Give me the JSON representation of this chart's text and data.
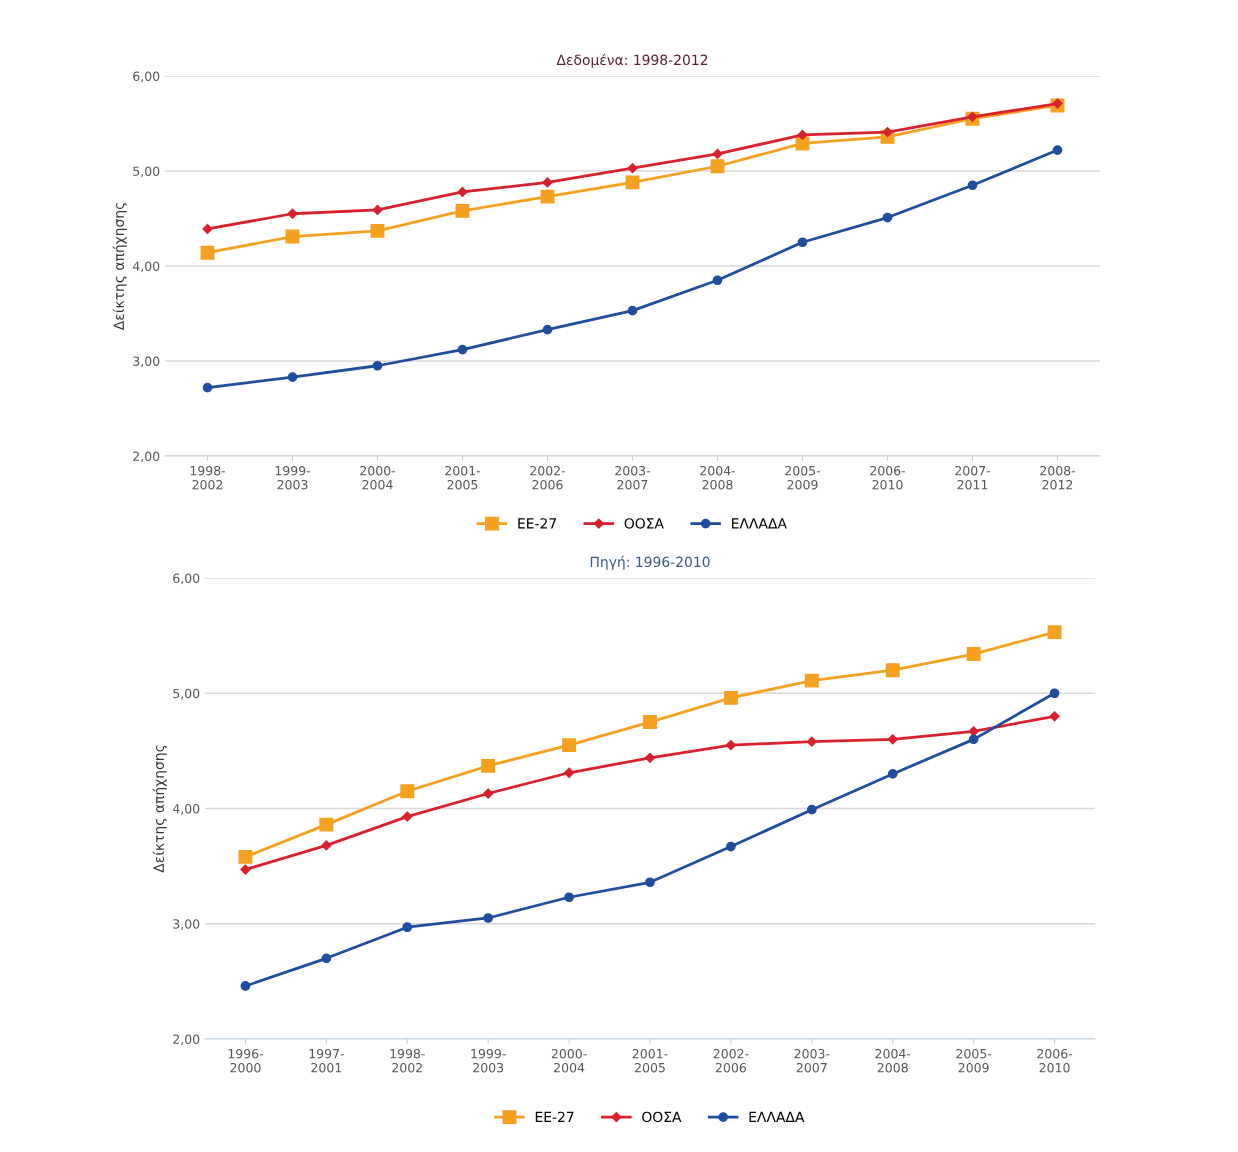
{
  "chart_data": [
    {
      "type": "line",
      "title": "Δεδομένα: 1998-2012",
      "ylabel": "Δείκτης απήχησης",
      "categories": [
        "1998-\n2002",
        "1999-\n2003",
        "2000-\n2004",
        "2001-\n2005",
        "2002-\n2006",
        "2003-\n2007",
        "2004-\n2008",
        "2005-\n2009",
        "2006-\n2010",
        "2007-\n2011",
        "2008-\n2012"
      ],
      "series": [
        {
          "name": "ΕΕ-27",
          "color": "#f5a020",
          "marker": "square",
          "values": [
            4.14,
            4.31,
            4.37,
            4.58,
            4.73,
            4.88,
            5.05,
            5.29,
            5.36,
            5.55,
            5.69
          ]
        },
        {
          "name": "ΟΟΣΑ",
          "color": "#d9212e",
          "marker": "diamond",
          "values": [
            4.39,
            4.55,
            4.59,
            4.78,
            4.88,
            5.03,
            5.18,
            5.38,
            5.41,
            5.57,
            5.71
          ]
        },
        {
          "name": "ΕΛΛΑΔΑ",
          "color": "#1f4e9c",
          "marker": "circle",
          "values": [
            2.72,
            2.83,
            2.95,
            3.12,
            3.33,
            3.53,
            3.85,
            4.25,
            4.51,
            4.85,
            5.22
          ]
        }
      ],
      "ylim": [
        2,
        6
      ],
      "yticks": [
        {
          "value": 2,
          "label": "2,00"
        },
        {
          "value": 3,
          "label": "3,00"
        },
        {
          "value": 4,
          "label": "4,00"
        },
        {
          "value": 5,
          "label": "5,00"
        },
        {
          "value": 6,
          "label": "6,00"
        }
      ],
      "grid": "y",
      "legend": "bottom"
    },
    {
      "type": "line",
      "title": "Πηγή: 1996-2010",
      "ylabel": "Δείκτης απήχησης",
      "categories": [
        "1996-\n2000",
        "1997-\n2001",
        "1998-\n2002",
        "1999-\n2003",
        "2000-\n2004",
        "2001-\n2005",
        "2002-\n2006",
        "2003-\n2007",
        "2004-\n2008",
        "2005-\n2009",
        "2006-\n2010"
      ],
      "series": [
        {
          "name": "ΕΕ-27",
          "color": "#f5a020",
          "marker": "square",
          "values": [
            3.58,
            3.86,
            4.15,
            4.37,
            4.55,
            4.75,
            4.96,
            5.11,
            5.2,
            5.34,
            5.53
          ]
        },
        {
          "name": "ΟΟΣΑ",
          "color": "#d9212e",
          "marker": "diamond",
          "values": [
            3.47,
            3.68,
            3.93,
            4.13,
            4.31,
            4.44,
            4.55,
            4.58,
            4.6,
            4.67,
            4.8
          ]
        },
        {
          "name": "ΕΛΛΑΔΑ",
          "color": "#1f4e9c",
          "marker": "circle",
          "values": [
            2.46,
            2.7,
            2.97,
            3.05,
            3.23,
            3.36,
            3.67,
            3.99,
            4.3,
            4.6,
            5.0
          ]
        }
      ],
      "ylim": [
        2,
        6
      ],
      "yticks": [
        {
          "value": 2,
          "label": "2,00"
        },
        {
          "value": 3,
          "label": "3,00"
        },
        {
          "value": 4,
          "label": "4,00"
        },
        {
          "value": 5,
          "label": "5,00"
        },
        {
          "value": 6,
          "label": "6,00"
        }
      ],
      "grid": "y",
      "legend": "bottom"
    }
  ]
}
